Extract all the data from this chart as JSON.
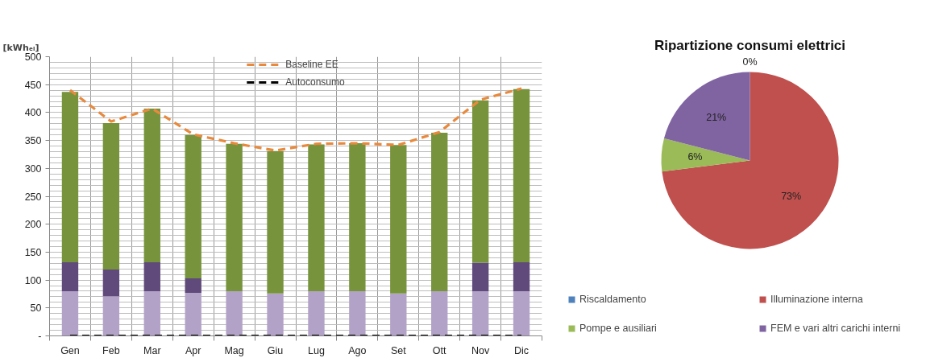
{
  "chart_data": [
    {
      "type": "bar",
      "stacked": true,
      "ylabel": "[kWhₑₗ]",
      "categories": [
        "Gen",
        "Feb",
        "Mar",
        "Apr",
        "Mag",
        "Giu",
        "Lug",
        "Ago",
        "Set",
        "Ott",
        "Nov",
        "Dic"
      ],
      "series": [
        {
          "color": "#b3a2c7",
          "values": [
            80,
            71,
            80,
            77,
            80,
            76,
            80,
            80,
            76,
            80,
            80,
            80
          ]
        },
        {
          "color": "#604a7b",
          "values": [
            52,
            48,
            52,
            26,
            0,
            0,
            0,
            0,
            0,
            0,
            51,
            52
          ]
        },
        {
          "color": "#77933c",
          "values": [
            305,
            262,
            275,
            257,
            264,
            255,
            263,
            265,
            266,
            284,
            291,
            310
          ]
        },
        {
          "type": "line",
          "name": "Baseline EE",
          "color": "#e8893d",
          "line_style": "dashed",
          "values": [
            440,
            384,
            407,
            361,
            345,
            332,
            344,
            345,
            342,
            365,
            423,
            443
          ]
        },
        {
          "type": "line",
          "name": "Autoconsumo",
          "color": "#000000",
          "line_style": "dashed",
          "values": [
            0,
            0,
            0,
            0,
            0,
            0,
            0,
            0,
            0,
            0,
            0,
            0
          ]
        }
      ],
      "ylim": [
        0,
        500
      ],
      "yticks": [
        {
          "value": 0,
          "label": "-"
        },
        50,
        100,
        150,
        200,
        250,
        300,
        350,
        400,
        450,
        500
      ],
      "grid": true,
      "legend": "top"
    },
    {
      "type": "pie",
      "title": "Ripartizione consumi elettrici",
      "categories": [
        "Riscaldamento",
        "Illuminazione interna",
        "Pompe e ausiliari",
        "FEM e vari altri carichi interni"
      ],
      "values": [
        0,
        73,
        6,
        21
      ],
      "colors": [
        "#4f81bd",
        "#c0504d",
        "#9bbb59",
        "#8064a2"
      ],
      "value_labels": [
        "0%",
        "73%",
        "6%",
        "21%"
      ],
      "legend": "bottom"
    }
  ]
}
